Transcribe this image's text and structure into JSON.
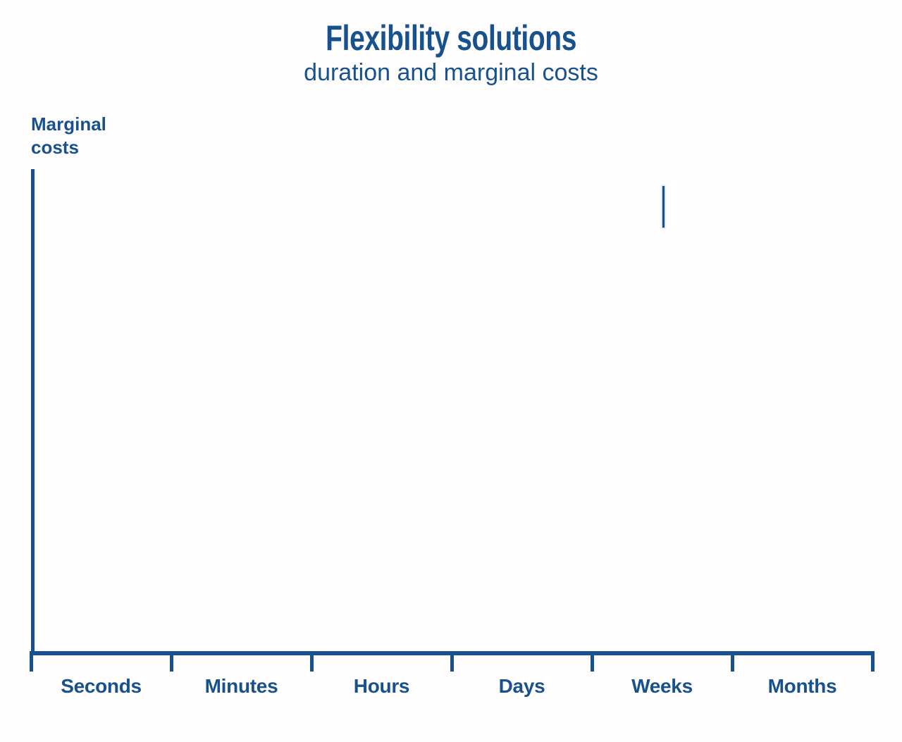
{
  "header": {
    "title": "Flexibility solutions",
    "subtitle": "duration and marginal costs"
  },
  "y_axis": {
    "label": "Marginal\ncosts"
  },
  "colors": {
    "primary": "#17528E",
    "background": "#FFFDFD"
  },
  "chart_data": {
    "type": "line",
    "title": "Flexibility solutions",
    "subtitle": "duration and marginal costs",
    "ylabel": "Marginal costs",
    "xlabel": "",
    "categories": [
      "Seconds",
      "Minutes",
      "Hours",
      "Days",
      "Weeks",
      "Months"
    ],
    "series": [],
    "grid": false,
    "legend": false,
    "numeric_tick_labels": false,
    "notes": "Axes-only conceptual chart; no data series are plotted. A short unlabeled vertical line fragment is visible in the upper area above the Weeks interval.",
    "annotations": [
      {
        "name": "partial-vertical-line-segment",
        "x_fraction": 0.75,
        "y_top_fraction": 0.035,
        "y_bottom_fraction": 0.12
      }
    ]
  }
}
